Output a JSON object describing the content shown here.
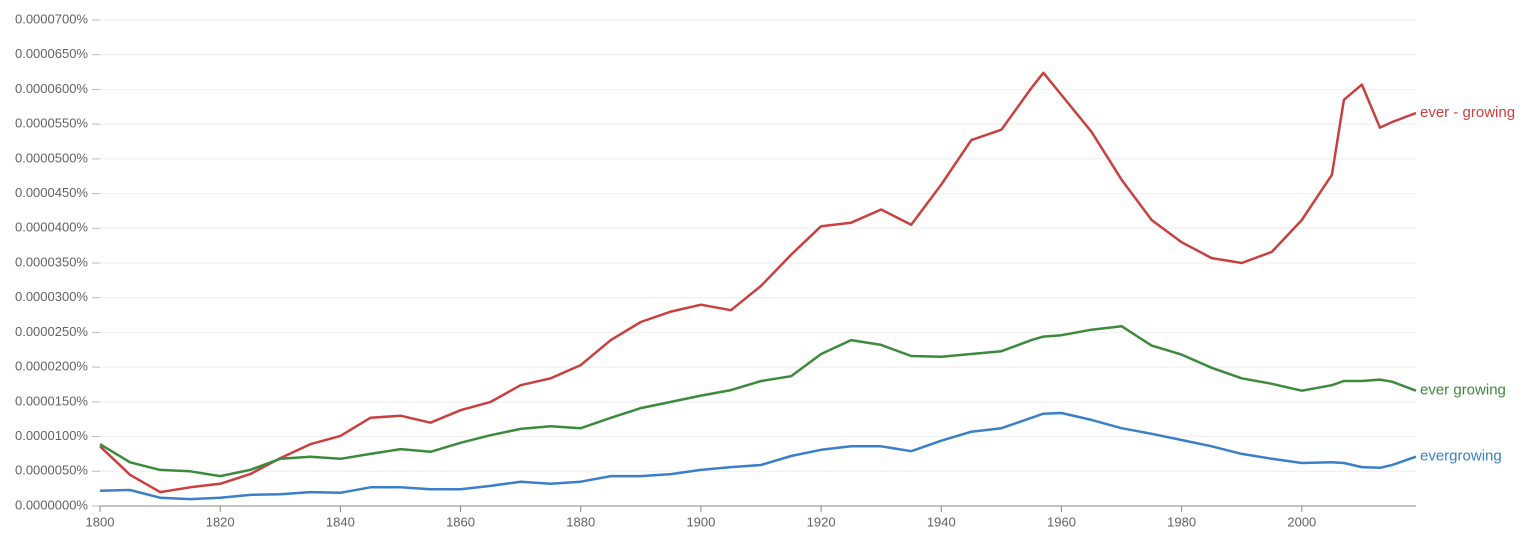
{
  "chart_data": {
    "type": "line",
    "x": [
      1800,
      1805,
      1810,
      1815,
      1820,
      1825,
      1830,
      1835,
      1840,
      1845,
      1850,
      1855,
      1860,
      1865,
      1870,
      1875,
      1880,
      1885,
      1890,
      1895,
      1900,
      1905,
      1910,
      1915,
      1920,
      1925,
      1930,
      1935,
      1940,
      1945,
      1950,
      1955,
      1957,
      1960,
      1965,
      1970,
      1975,
      1980,
      1985,
      1990,
      1995,
      2000,
      2005,
      2007,
      2010,
      2013,
      2015,
      2019
    ],
    "series": [
      {
        "name": "ever - growing",
        "color": "#c94040",
        "values": [
          8.6e-06,
          4.5e-06,
          2e-06,
          2.7e-06,
          3.2e-06,
          4.6e-06,
          6.9e-06,
          8.9e-06,
          1.01e-05,
          1.27e-05,
          1.3e-05,
          1.2e-05,
          1.38e-05,
          1.5e-05,
          1.74e-05,
          1.84e-05,
          2.03e-05,
          2.39e-05,
          2.65e-05,
          2.8e-05,
          2.9e-05,
          2.82e-05,
          3.17e-05,
          3.62e-05,
          4.03e-05,
          4.08e-05,
          4.27e-05,
          4.05e-05,
          4.63e-05,
          5.27e-05,
          5.42e-05,
          6.02e-05,
          6.24e-05,
          5.92e-05,
          5.39e-05,
          4.7e-05,
          4.12e-05,
          3.8e-05,
          3.57e-05,
          3.5e-05,
          3.66e-05,
          4.12e-05,
          4.77e-05,
          5.85e-05,
          6.07e-05,
          5.45e-05,
          5.53e-05,
          5.66e-05
        ]
      },
      {
        "name": "ever growing",
        "color": "#3c8a3c",
        "values": [
          8.9e-06,
          6.3e-06,
          5.2e-06,
          5e-06,
          4.3e-06,
          5.2e-06,
          6.8e-06,
          7.1e-06,
          6.8e-06,
          7.5e-06,
          8.2e-06,
          7.8e-06,
          9.1e-06,
          1.02e-05,
          1.11e-05,
          1.15e-05,
          1.12e-05,
          1.27e-05,
          1.41e-05,
          1.5e-05,
          1.59e-05,
          1.67e-05,
          1.8e-05,
          1.87e-05,
          2.19e-05,
          2.39e-05,
          2.32e-05,
          2.16e-05,
          2.15e-05,
          2.19e-05,
          2.23e-05,
          2.39e-05,
          2.44e-05,
          2.46e-05,
          2.54e-05,
          2.59e-05,
          2.31e-05,
          2.18e-05,
          1.99e-05,
          1.84e-05,
          1.76e-05,
          1.66e-05,
          1.74e-05,
          1.8e-05,
          1.8e-05,
          1.82e-05,
          1.79e-05,
          1.66e-05
        ]
      },
      {
        "name": "evergrowing",
        "color": "#3a7fc8",
        "values": [
          2.2e-06,
          2.3e-06,
          1.2e-06,
          1e-06,
          1.2e-06,
          1.6e-06,
          1.7e-06,
          2e-06,
          1.9e-06,
          2.7e-06,
          2.7e-06,
          2.4e-06,
          2.4e-06,
          2.9e-06,
          3.5e-06,
          3.2e-06,
          3.5e-06,
          4.3e-06,
          4.3e-06,
          4.6e-06,
          5.2e-06,
          5.6e-06,
          5.9e-06,
          7.2e-06,
          8.1e-06,
          8.6e-06,
          8.6e-06,
          7.9e-06,
          9.4e-06,
          1.07e-05,
          1.12e-05,
          1.27e-05,
          1.33e-05,
          1.34e-05,
          1.24e-05,
          1.12e-05,
          1.04e-05,
          9.5e-06,
          8.6e-06,
          7.5e-06,
          6.8e-06,
          6.2e-06,
          6.3e-06,
          6.2e-06,
          5.6e-06,
          5.5e-06,
          5.9e-06,
          7.1e-06
        ]
      }
    ],
    "xlim": [
      1800,
      2019
    ],
    "xticks": [
      1800,
      1820,
      1840,
      1860,
      1880,
      1900,
      1920,
      1940,
      1960,
      1980,
      2000
    ],
    "ylim": [
      0,
      7e-05
    ],
    "yticks": [
      {
        "value": 0,
        "label": "0.0000000%"
      },
      {
        "value": 5e-06,
        "label": "0.0000050%"
      },
      {
        "value": 1e-05,
        "label": "0.0000100%"
      },
      {
        "value": 1.5e-05,
        "label": "0.0000150%"
      },
      {
        "value": 2e-05,
        "label": "0.0000200%"
      },
      {
        "value": 2.5e-05,
        "label": "0.0000250%"
      },
      {
        "value": 3e-05,
        "label": "0.0000300%"
      },
      {
        "value": 3.5e-05,
        "label": "0.0000350%"
      },
      {
        "value": 4e-05,
        "label": "0.0000400%"
      },
      {
        "value": 4.5e-05,
        "label": "0.0000450%"
      },
      {
        "value": 5e-05,
        "label": "0.0000500%"
      },
      {
        "value": 5.5e-05,
        "label": "0.0000550%"
      },
      {
        "value": 6e-05,
        "label": "0.0000600%"
      },
      {
        "value": 6.5e-05,
        "label": "0.0000650%"
      },
      {
        "value": 7e-05,
        "label": "0.0000700%"
      }
    ],
    "grid": true
  }
}
